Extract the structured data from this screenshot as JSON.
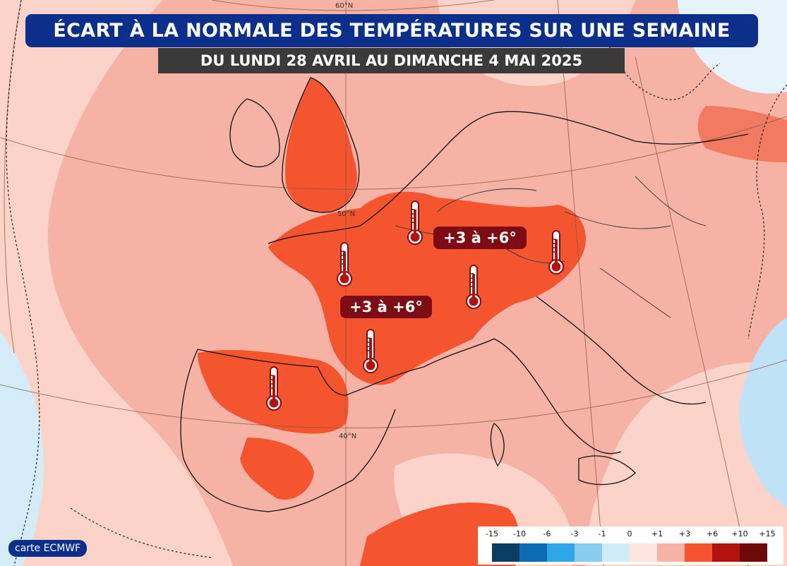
{
  "title": "ÉCART À LA NORMALE DES TEMPÉRATURES SUR UNE SEMAINE",
  "subtitle": "DU LUNDI 28 AVRIL AU DIMANCHE 4 MAI 2025",
  "annotations": [
    "+3 à +6°",
    "+3 à +6°"
  ],
  "credit": "carte ECMWF",
  "latitude_labels": [
    "60°N",
    "50°N",
    "40°N"
  ],
  "thermometer_icon": "thermometer-icon",
  "legend": {
    "ticks": [
      "-15",
      "-10",
      "-6",
      "-3",
      "-1",
      "0",
      "+1",
      "+3",
      "+6",
      "+10",
      "+15"
    ],
    "colors": [
      "#0a3d63",
      "#0d6bb3",
      "#2ea7e6",
      "#86cdf0",
      "#cfeaf8",
      "#fde4de",
      "#f6b2a4",
      "#f4552f",
      "#b3120f",
      "#6b0a08"
    ]
  },
  "colors": {
    "title_bg": "#0b2f8a",
    "subtitle_bg": "#3a3a3a",
    "label_bg": "#7e0c14",
    "anomaly_0_1": "#fde4de",
    "anomaly_1_3": "#f6b2a4",
    "anomaly_3_6": "#f4552f",
    "cold": "#cfeaf8"
  }
}
